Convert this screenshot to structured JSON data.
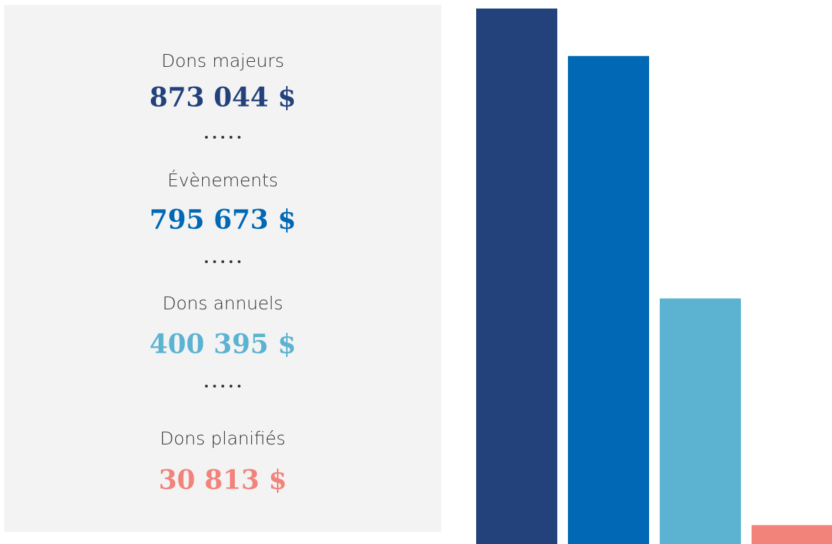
{
  "chart_data": {
    "type": "bar",
    "categories": [
      "Dons majeurs",
      "Évènements",
      "Dons annuels",
      "Dons planifiés"
    ],
    "values": [
      873044,
      795673,
      400395,
      30813
    ],
    "value_labels": [
      "873 044 $",
      "795 673 $",
      "400 395 $",
      "30 813 $"
    ],
    "colors": [
      "#23427c",
      "#0068b4",
      "#5bb3d1",
      "#f1837b"
    ]
  }
}
